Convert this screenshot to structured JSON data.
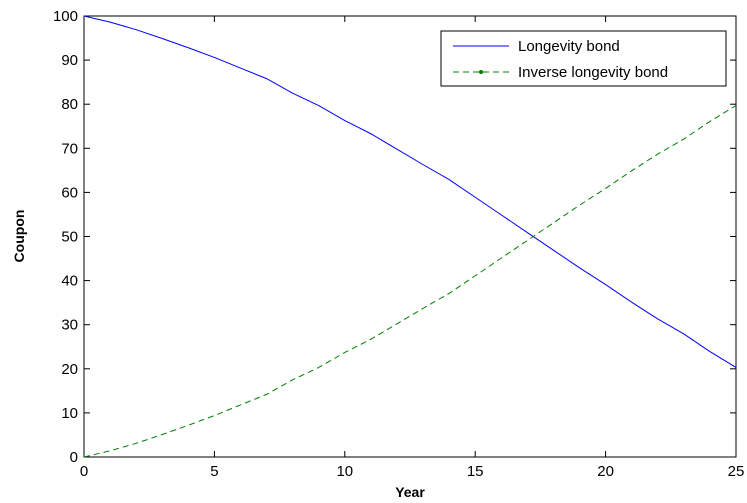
{
  "chart_data": {
    "type": "line",
    "xlabel": "Year",
    "ylabel": "Coupon",
    "xlim": [
      0,
      25
    ],
    "ylim": [
      0,
      100
    ],
    "xticks": [
      "0",
      "5",
      "10",
      "15",
      "20",
      "25"
    ],
    "yticks": [
      "0",
      "10",
      "20",
      "30",
      "40",
      "50",
      "60",
      "70",
      "80",
      "90",
      "100"
    ],
    "grid": false,
    "legend_position": "top-right",
    "x": [
      0,
      1,
      2,
      3,
      4,
      5,
      6,
      7,
      8,
      9,
      10,
      11,
      12,
      13,
      14,
      15,
      16,
      17,
      18,
      19,
      20,
      21,
      22,
      23,
      24,
      25
    ],
    "series": [
      {
        "name": "Longevity bond",
        "color": "#0000ff",
        "line_style": "solid",
        "values": [
          100,
          98.6,
          96.9,
          94.9,
          92.8,
          90.6,
          88.2,
          85.8,
          82.5,
          79.7,
          76.3,
          73.3,
          69.8,
          66.3,
          62.9,
          58.9,
          54.9,
          50.9,
          46.9,
          42.9,
          39.1,
          35.1,
          31.3,
          27.9,
          23.9,
          20.3
        ]
      },
      {
        "name": "Inverse longevity bond",
        "color": "#008000",
        "line_style": "dashed",
        "values": [
          0,
          1.4,
          3.1,
          5.1,
          7.2,
          9.4,
          11.8,
          14.2,
          17.5,
          20.3,
          23.7,
          26.7,
          30.2,
          33.7,
          37.1,
          41.1,
          45.1,
          49.1,
          53.1,
          57.1,
          60.9,
          64.9,
          68.7,
          72.1,
          76.1,
          79.7
        ]
      }
    ]
  }
}
